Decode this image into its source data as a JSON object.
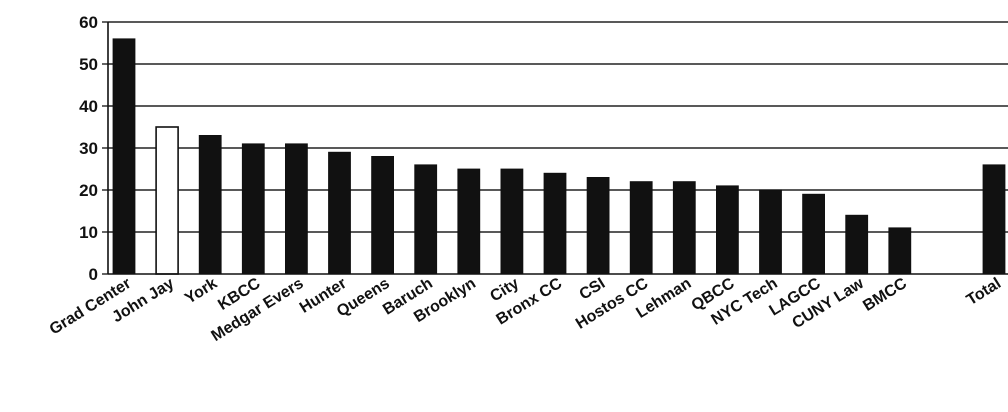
{
  "chart_data": {
    "type": "bar",
    "categories": [
      "Grad Center",
      "John Jay",
      "York",
      "KBCC",
      "Medgar Evers",
      "Hunter",
      "Queens",
      "Baruch",
      "Brooklyn",
      "City",
      "Bronx CC",
      "CSI",
      "Hostos CC",
      "Lehman",
      "QBCC",
      "NYC Tech",
      "LAGCC",
      "CUNY Law",
      "BMCC",
      "Total"
    ],
    "values": [
      56,
      35,
      33,
      31,
      31,
      29,
      28,
      26,
      25,
      25,
      24,
      23,
      22,
      22,
      21,
      20,
      19,
      14,
      11,
      26
    ],
    "highlight": "John Jay",
    "ylim": [
      0,
      60
    ],
    "yticks": [
      0,
      10,
      20,
      30,
      40,
      50,
      60
    ],
    "title": "",
    "xlabel": "",
    "ylabel": "",
    "grid": true,
    "colors": {
      "bar": "#111111",
      "highlight_fill": "#ffffff",
      "grid": "#222222"
    }
  }
}
